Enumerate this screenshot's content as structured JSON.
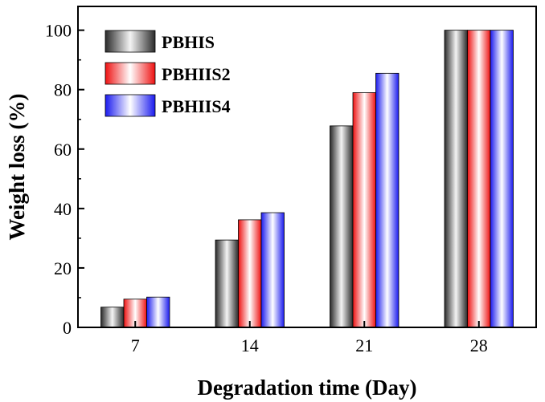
{
  "chart_data": {
    "type": "bar",
    "categories": [
      "7",
      "14",
      "21",
      "28"
    ],
    "series": [
      {
        "name": "PBHIS",
        "values": [
          6.8,
          29.4,
          67.8,
          100
        ]
      },
      {
        "name": "PBHIIS2",
        "values": [
          9.5,
          36.2,
          79.0,
          100
        ]
      },
      {
        "name": "PBHIIS4",
        "values": [
          10.2,
          38.6,
          85.5,
          100
        ]
      }
    ],
    "title": "",
    "xlabel": "Degradation time (Day)",
    "ylabel": "Weight loss (%)",
    "ylim": [
      0,
      108
    ],
    "yticks": [
      0,
      20,
      40,
      60,
      80,
      100
    ],
    "grid": false,
    "legend_position": "top-left",
    "colors": {
      "PBHIS": {
        "edge": "#2a2a2a",
        "mid": "#f4f4f4"
      },
      "PBHIIS2": {
        "edge": "#ee1111",
        "mid": "#ffffff"
      },
      "PBHIIS4": {
        "edge": "#1a1aee",
        "mid": "#ffffff"
      }
    }
  }
}
